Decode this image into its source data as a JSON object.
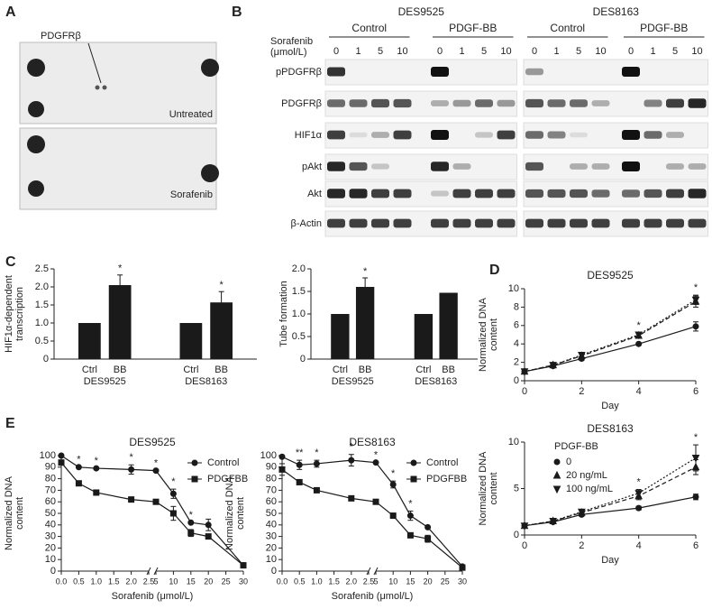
{
  "panel_labels": [
    "A",
    "B",
    "C",
    "D",
    "E"
  ],
  "panel_a": {
    "target": "PDGFRβ",
    "conditions": [
      "Untreated",
      "Sorafenib"
    ]
  },
  "panel_b": {
    "cell_lines": [
      {
        "name": "DES9525",
        "groups": [
          {
            "name": "Control",
            "doses": [
              "0",
              "1",
              "5",
              "10"
            ]
          },
          {
            "name": "PDGF-BB",
            "doses": [
              "0",
              "1",
              "5",
              "10"
            ]
          }
        ]
      },
      {
        "name": "DES8163",
        "groups": [
          {
            "name": "Control",
            "doses": [
              "0",
              "1",
              "5",
              "10"
            ]
          },
          {
            "name": "PDGF-BB",
            "doses": [
              "0",
              "1",
              "5",
              "10"
            ]
          }
        ]
      }
    ],
    "dose_label": [
      "Sorafenib",
      "(μmol/L)"
    ],
    "rows": [
      "pPDGFRβ",
      "PDGFRβ",
      "HIF1α",
      "pAkt",
      "Akt",
      "β-Actin"
    ]
  },
  "chart_data": [
    {
      "type": "bar",
      "y_label": [
        "HIF1α-dependent",
        "transcription"
      ],
      "categories": [
        "Ctrl",
        "BB",
        "Ctrl",
        "BB"
      ],
      "groups": [
        "DES9525",
        "DES8163"
      ],
      "values": [
        1.0,
        2.05,
        1.0,
        1.57
      ],
      "errors": [
        null,
        0.28,
        null,
        0.3
      ],
      "significance": [
        null,
        "*",
        null,
        "*"
      ],
      "color": "#1a1a1a",
      "ylim": [
        0,
        2.5
      ],
      "yticks": [
        0,
        0.5,
        {
          "value": 1,
          "label": "1.0"
        },
        1.5,
        {
          "value": 2,
          "label": "2.0"
        },
        2.5
      ]
    },
    {
      "type": "bar",
      "y_label": [
        "Tube formation"
      ],
      "categories": [
        "Ctrl",
        "BB",
        "Ctrl",
        "BB"
      ],
      "groups": [
        "DES9525",
        "DES8163"
      ],
      "values": [
        1.0,
        1.6,
        1.0,
        1.47
      ],
      "errors": [
        null,
        0.2,
        null,
        null
      ],
      "significance": [
        null,
        "*",
        null,
        null
      ],
      "color": "#1a1a1a",
      "ylim": [
        0,
        2
      ],
      "yticks": [
        0,
        0.5,
        {
          "value": 1,
          "label": "1.0"
        },
        1.5,
        {
          "value": 2,
          "label": "2.0"
        }
      ]
    },
    {
      "type": "line",
      "title": "DES9525",
      "y_label": [
        "Normalized DNA",
        "content"
      ],
      "x_label": "Day",
      "x": [
        0,
        1,
        2,
        4,
        6
      ],
      "series": [
        {
          "color": "#1a1a1a",
          "dash": "solid",
          "marker": "circle",
          "values": [
            1,
            1.6,
            2.4,
            4.0,
            5.9
          ],
          "errors": [
            null,
            0.2,
            0.2,
            0.15,
            0.5
          ]
        },
        {
          "color": "#1a1a1a",
          "dash": "dashed",
          "marker": "triangle-up",
          "values": [
            1,
            1.7,
            2.7,
            4.9,
            8.6
          ],
          "errors": [
            null,
            0.2,
            0.2,
            0.2,
            0.6
          ]
        },
        {
          "color": "#1a1a1a",
          "dash": "dotted",
          "marker": "triangle-down",
          "values": [
            1,
            1.7,
            2.8,
            5.0,
            8.8
          ],
          "errors": [
            null,
            0.2,
            0.2,
            0.2,
            0.5
          ]
        }
      ],
      "significance": [
        null,
        null,
        null,
        "*",
        "*"
      ],
      "xlim": [
        0,
        6
      ],
      "xticks": [
        0,
        2,
        4,
        6
      ],
      "ylim": [
        0,
        10
      ],
      "yticks": [
        0,
        2,
        4,
        6,
        8,
        10
      ]
    },
    {
      "type": "line",
      "title": "DES8163",
      "y_label": [
        "Normalized DNA",
        "content"
      ],
      "x_label": "Day",
      "x": [
        0,
        1,
        2,
        4,
        6
      ],
      "legend": "upper left",
      "legend_title": "PDGF-BB",
      "series": [
        {
          "name": "0",
          "color": "#1a1a1a",
          "dash": "solid",
          "marker": "circle",
          "values": [
            1,
            1.4,
            2.2,
            2.9,
            4.1
          ],
          "errors": [
            null,
            null,
            0.2,
            0.2,
            0.3
          ]
        },
        {
          "name": "20 ng/mL",
          "color": "#1a1a1a",
          "dash": "dashed",
          "marker": "triangle-up",
          "values": [
            1,
            1.5,
            2.4,
            4.2,
            7.3
          ],
          "errors": [
            null,
            null,
            0.2,
            0.4,
            0.8
          ]
        },
        {
          "name": "100 ng/mL",
          "color": "#1a1a1a",
          "dash": "dotted",
          "marker": "triangle-down",
          "values": [
            1,
            1.5,
            2.5,
            4.5,
            8.3
          ],
          "errors": [
            null,
            null,
            0.2,
            0.4,
            1.4
          ]
        }
      ],
      "significance": [
        null,
        null,
        null,
        "*",
        "*"
      ],
      "xlim": [
        0,
        6
      ],
      "xticks": [
        0,
        2,
        4,
        6
      ],
      "ylim": [
        0,
        10
      ],
      "yticks": [
        0,
        5,
        10
      ]
    },
    {
      "type": "line",
      "title": "DES9525",
      "y_label": [
        "Normalized DNA",
        "content"
      ],
      "x_label": "Sorafenib (μmol/L)",
      "x": [
        0,
        0.5,
        1,
        2,
        5,
        10,
        15,
        20,
        30
      ],
      "legend": "upper right",
      "series": [
        {
          "name": "Control",
          "color": "#1a1a1a",
          "dash": "solid",
          "marker": "circle",
          "values": [
            100,
            90,
            89,
            88,
            87,
            67,
            42,
            40,
            5
          ],
          "errors": [
            null,
            null,
            null,
            4,
            null,
            4,
            null,
            5,
            null
          ]
        },
        {
          "name": "PDGFBB",
          "color": "#1a1a1a",
          "dash": "solid",
          "marker": "square",
          "values": [
            94,
            76,
            68,
            62,
            60,
            50,
            33,
            30,
            5
          ],
          "errors": [
            null,
            null,
            null,
            2,
            2,
            6,
            3,
            null,
            null
          ]
        }
      ],
      "significance": [
        null,
        "*",
        "*",
        "*",
        "*",
        "*",
        "*",
        null,
        null
      ],
      "xlim": [
        0,
        30
      ],
      "xbreak": [
        2.5,
        5
      ],
      "xticks": [
        {
          "value": 0,
          "label": "0.0"
        },
        0.5,
        {
          "value": 1,
          "label": "1.0"
        },
        1.5,
        {
          "value": 2,
          "label": "2.0"
        },
        2.5,
        5,
        10,
        15,
        20,
        25,
        30
      ],
      "ylim": [
        0,
        100
      ],
      "yticks": [
        0,
        10,
        20,
        30,
        40,
        50,
        60,
        70,
        80,
        90,
        100
      ]
    },
    {
      "type": "line",
      "title": "DES8163",
      "y_label": [
        "Normalized DNA",
        "content"
      ],
      "x_label": "Sorafenib (μmol/L)",
      "x": [
        0,
        0.5,
        1,
        2,
        5,
        10,
        15,
        20,
        30
      ],
      "legend": "upper right",
      "series": [
        {
          "name": "Control",
          "color": "#1a1a1a",
          "dash": "solid",
          "marker": "circle",
          "values": [
            99,
            92,
            93,
            96,
            94,
            75,
            48,
            38,
            4
          ],
          "errors": [
            null,
            4,
            3,
            5,
            null,
            3,
            4,
            null,
            null
          ]
        },
        {
          "name": "PDGFBB",
          "color": "#1a1a1a",
          "dash": "solid",
          "marker": "square",
          "values": [
            88,
            77,
            70,
            63,
            60,
            48,
            31,
            28,
            3
          ],
          "errors": [
            5,
            null,
            null,
            null,
            null,
            null,
            null,
            3,
            null
          ]
        }
      ],
      "significance": [
        null,
        "**",
        "*",
        "*",
        "*",
        "*",
        "*",
        null,
        null
      ],
      "xlim": [
        0,
        30
      ],
      "xbreak": [
        2.5,
        5
      ],
      "xticks": [
        {
          "value": 0,
          "label": "0.0"
        },
        0.5,
        {
          "value": 1,
          "label": "1.0"
        },
        1.5,
        {
          "value": 2,
          "label": "2.0"
        },
        2.5,
        5,
        10,
        15,
        20,
        25,
        30
      ],
      "ylim": [
        0,
        100
      ],
      "yticks": [
        0,
        10,
        20,
        30,
        40,
        50,
        60,
        70,
        80,
        90,
        100
      ]
    }
  ]
}
